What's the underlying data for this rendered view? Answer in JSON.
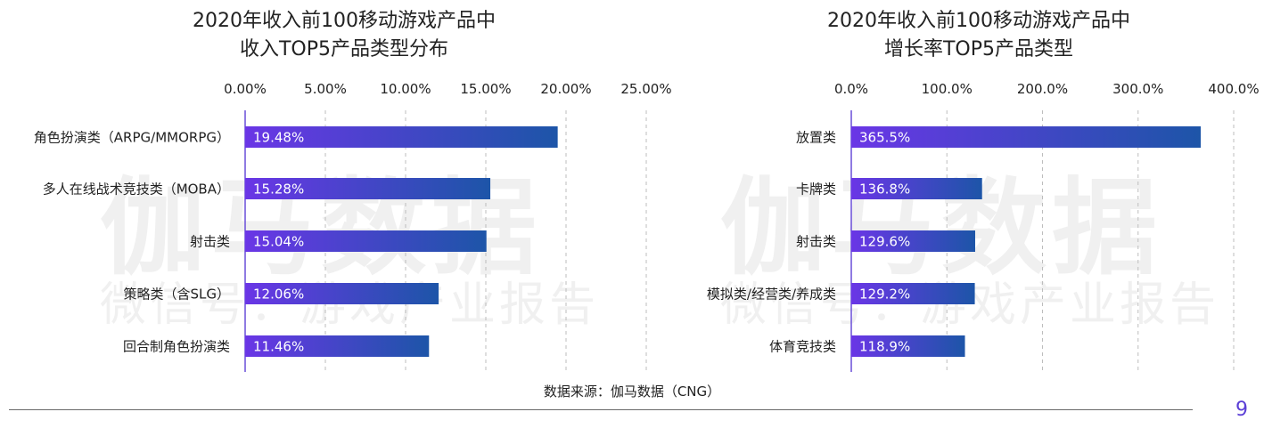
{
  "watermark": {
    "brand": "伽马数据",
    "wechat": "微信号：游戏产业报告"
  },
  "charts": {
    "left": {
      "title_line1": "2020年收入前100移动游戏产品中",
      "title_line2": "收入TOP5产品类型分布"
    },
    "right": {
      "title_line1": "2020年收入前100移动游戏产品中",
      "title_line2": "增长率TOP5产品类型"
    }
  },
  "chart_data": [
    {
      "type": "bar",
      "orientation": "horizontal",
      "title": "2020年收入前100移动游戏产品中收入TOP5产品类型分布",
      "categories": [
        "角色扮演类（ARPG/MMORPG）",
        "多人在线战术竞技类（MOBA）",
        "射击类",
        "策略类（含SLG）",
        "回合制角色扮演类"
      ],
      "values": [
        19.48,
        15.28,
        15.04,
        12.06,
        11.46
      ],
      "value_labels": [
        "19.48%",
        "15.28%",
        "15.04%",
        "12.06%",
        "11.46%"
      ],
      "xlim": [
        0,
        25
      ],
      "xticks": [
        0,
        5,
        10,
        15,
        20,
        25
      ],
      "xtick_labels": [
        "0.00%",
        "5.00%",
        "10.00%",
        "15.00%",
        "20.00%",
        "25.00%"
      ],
      "grid": "vertical dashed",
      "axis_position": "top"
    },
    {
      "type": "bar",
      "orientation": "horizontal",
      "title": "2020年收入前100移动游戏产品中增长率TOP5产品类型",
      "categories": [
        "放置类",
        "卡牌类",
        "射击类",
        "模拟类/经营类/养成类",
        "体育竞技类"
      ],
      "values": [
        365.5,
        136.8,
        129.6,
        129.2,
        118.9
      ],
      "value_labels": [
        "365.5%",
        "136.8%",
        "129.6%",
        "129.2%",
        "118.9%"
      ],
      "xlim": [
        0,
        400
      ],
      "xticks": [
        0,
        100,
        200,
        300,
        400
      ],
      "xtick_labels": [
        "0.0%",
        "100.0%",
        "200.0%",
        "300.0%",
        "400.0%"
      ],
      "grid": "vertical dashed",
      "axis_position": "top"
    }
  ],
  "colors": {
    "bar_gradient_start": "#6a36e6",
    "bar_gradient_end": "#1d55a8",
    "axis_line": "#6a4fd9",
    "grid": "#bdbdbd",
    "page_number": "#5b3fd6"
  },
  "footer": {
    "source": "数据来源：伽马数据（CNG）",
    "page_number": "9"
  }
}
